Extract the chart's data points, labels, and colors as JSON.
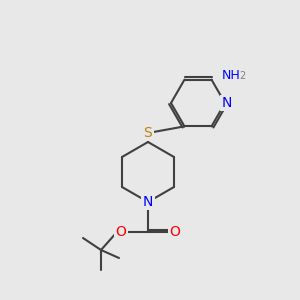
{
  "bg_color": "#e8e8e8",
  "bond_color": "#404040",
  "bond_width": 1.5,
  "atom_colors": {
    "N": "#0000ff",
    "S": "#b8860b",
    "O": "#ff0000",
    "C": "#404040",
    "H": "#808080"
  },
  "font_size": 9,
  "fig_size": [
    3.0,
    3.0
  ],
  "dpi": 100
}
